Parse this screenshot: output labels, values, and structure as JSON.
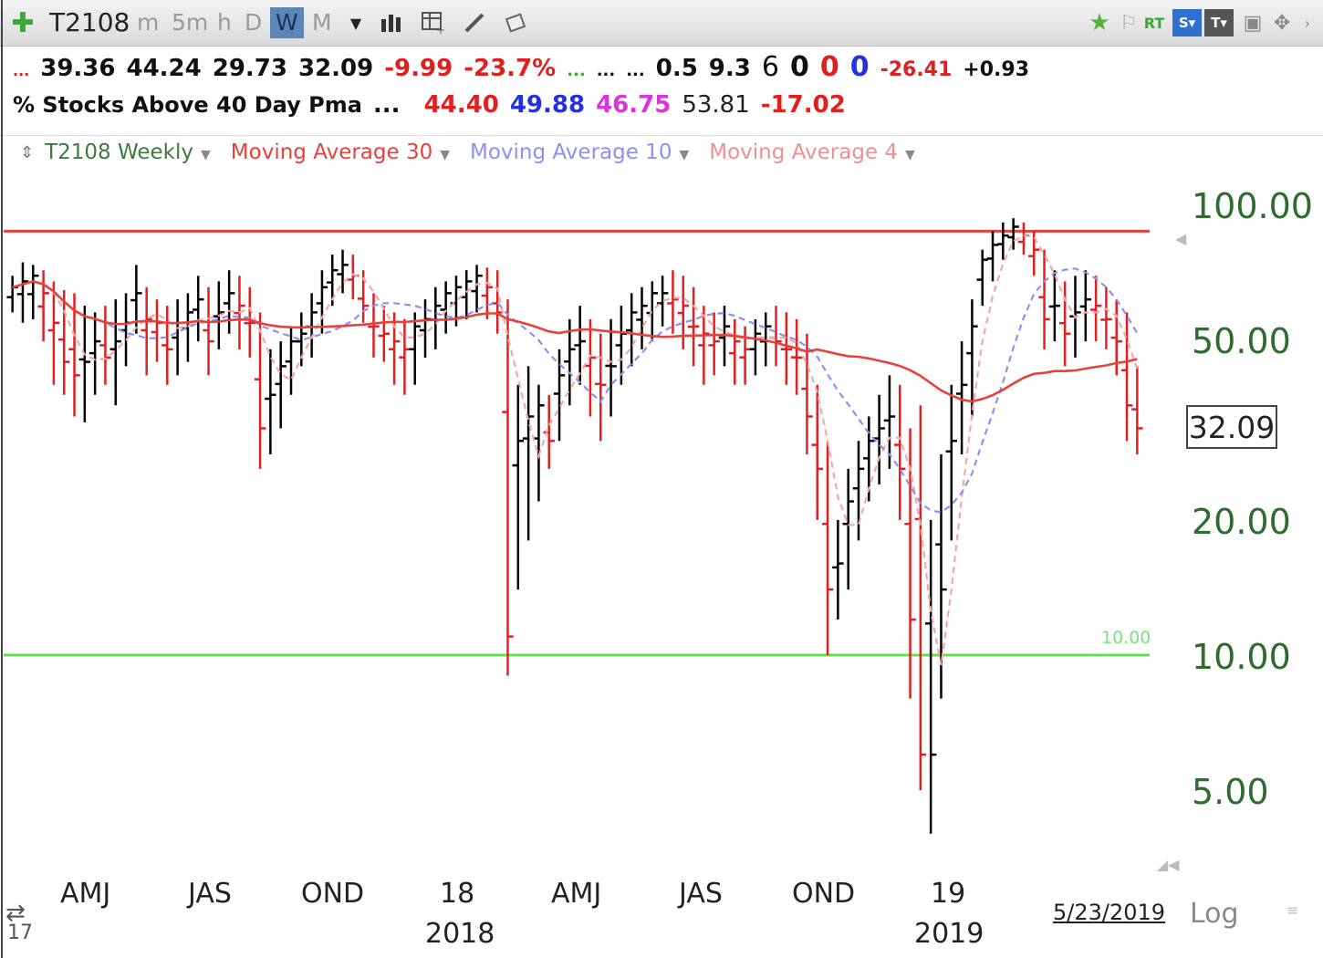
{
  "toolbar": {
    "symbol": "T2108",
    "timeframes": [
      "m",
      "5m",
      "h",
      "D",
      "W",
      "M"
    ],
    "active_timeframe": "W",
    "right_labels": {
      "rt": "RT",
      "s": "S▾",
      "t": "T▾"
    }
  },
  "quote_row": {
    "prefix": "...",
    "open": "39.36",
    "high": "44.24",
    "low": "29.73",
    "close": "32.09",
    "change": "-9.99",
    "change_pct": "-23.7%",
    "dots_green": "...",
    "dots1": "...",
    "dots2": "...",
    "v1": "0.5",
    "v2": "9.3",
    "v3": "6",
    "v4": "0",
    "v5": "0",
    "v6": "0",
    "v7": "-26.41",
    "v8": "+0.93"
  },
  "desc_row": {
    "name": "% Stocks Above 40 Day Pma",
    "dots": "...",
    "ma30": "44.40",
    "ma10": "49.88",
    "ma4": "46.75",
    "prev": "53.81",
    "diff": "-17.02"
  },
  "legend": {
    "series": "T2108 Weekly",
    "ma30": "Moving Average 30",
    "ma10": "Moving Average 10",
    "ma4": "Moving Average 4"
  },
  "colors": {
    "up": "#000000",
    "down": "#e02020",
    "ma30": "#e8403a",
    "ma10": "#8f8ff0",
    "ma4": "#f4a8a8",
    "resistance": "#e8403a",
    "support": "#66dd55",
    "axis_text": "#2e6b2e"
  },
  "chart_data": {
    "type": "ohlc",
    "title": "T2108 Weekly",
    "scale": "log",
    "y_ticks": [
      "100.00",
      "50.00",
      "20.00",
      "10.00",
      "5.00"
    ],
    "y_tick_values": [
      100,
      50,
      20,
      10,
      5
    ],
    "ylim": [
      3.6,
      135
    ],
    "x_ticks": [
      "AMJ",
      "JAS",
      "OND",
      "18",
      "AMJ",
      "JAS",
      "OND",
      "19"
    ],
    "x_years": [
      "2018",
      "2019"
    ],
    "x_left_label": "17",
    "last_price": "32.09",
    "last_date": "5/23/2019",
    "scale_label": "Log",
    "resistance_level": 88,
    "support_level": 10,
    "support_label": "10.00",
    "bars": [
      [
        70,
        58,
        66
      ],
      [
        75,
        55,
        68
      ],
      [
        74,
        56,
        70
      ],
      [
        72,
        50,
        64
      ],
      [
        68,
        40,
        55
      ],
      [
        65,
        38,
        45
      ],
      [
        64,
        34,
        42
      ],
      [
        60,
        33,
        45
      ],
      [
        58,
        38,
        50
      ],
      [
        60,
        40,
        46
      ],
      [
        62,
        36,
        50
      ],
      [
        64,
        44,
        55
      ],
      [
        74,
        52,
        64
      ],
      [
        66,
        42,
        56
      ],
      [
        62,
        45,
        55
      ],
      [
        60,
        40,
        48
      ],
      [
        62,
        42,
        55
      ],
      [
        64,
        45,
        58
      ],
      [
        70,
        50,
        62
      ],
      [
        66,
        42,
        50
      ],
      [
        68,
        48,
        58
      ],
      [
        72,
        52,
        64
      ],
      [
        70,
        48,
        60
      ],
      [
        66,
        46,
        55
      ],
      [
        58,
        26,
        32
      ],
      [
        48,
        28,
        38
      ],
      [
        50,
        32,
        44
      ],
      [
        54,
        38,
        50
      ],
      [
        58,
        44,
        52
      ],
      [
        64,
        46,
        58
      ],
      [
        72,
        52,
        66
      ],
      [
        78,
        60,
        72
      ],
      [
        80,
        64,
        74
      ],
      [
        78,
        62,
        70
      ],
      [
        72,
        55,
        60
      ],
      [
        64,
        46,
        54
      ],
      [
        60,
        45,
        52
      ],
      [
        58,
        40,
        50
      ],
      [
        56,
        38,
        48
      ],
      [
        58,
        40,
        54
      ],
      [
        62,
        46,
        56
      ],
      [
        66,
        48,
        60
      ],
      [
        68,
        52,
        64
      ],
      [
        70,
        54,
        66
      ],
      [
        72,
        56,
        68
      ],
      [
        74,
        58,
        70
      ],
      [
        73,
        56,
        66
      ],
      [
        72,
        52,
        58
      ],
      [
        62,
        9,
        11
      ],
      [
        40,
        14,
        30
      ],
      [
        44,
        18,
        34
      ],
      [
        40,
        22,
        36
      ],
      [
        38,
        26,
        30
      ],
      [
        48,
        30,
        42
      ],
      [
        56,
        36,
        48
      ],
      [
        60,
        40,
        50
      ],
      [
        56,
        34,
        46
      ],
      [
        52,
        30,
        40
      ],
      [
        56,
        34,
        44
      ],
      [
        60,
        40,
        52
      ],
      [
        64,
        44,
        58
      ],
      [
        66,
        48,
        60
      ],
      [
        68,
        50,
        64
      ],
      [
        70,
        54,
        64
      ],
      [
        72,
        52,
        62
      ],
      [
        70,
        48,
        60
      ],
      [
        66,
        44,
        54
      ],
      [
        60,
        40,
        52
      ],
      [
        58,
        42,
        50
      ],
      [
        60,
        44,
        54
      ],
      [
        56,
        40,
        50
      ],
      [
        54,
        40,
        48
      ],
      [
        56,
        42,
        52
      ],
      [
        58,
        44,
        54
      ],
      [
        60,
        44,
        50
      ],
      [
        58,
        40,
        48
      ],
      [
        56,
        38,
        46
      ],
      [
        52,
        28,
        34
      ],
      [
        40,
        20,
        26
      ],
      [
        30,
        10,
        14
      ],
      [
        20,
        12,
        16
      ],
      [
        26,
        14,
        22
      ],
      [
        30,
        18,
        26
      ],
      [
        34,
        22,
        30
      ],
      [
        38,
        24,
        32
      ],
      [
        42,
        26,
        34
      ],
      [
        40,
        20,
        26
      ],
      [
        32,
        8,
        12
      ],
      [
        36,
        5,
        6
      ],
      [
        20,
        4,
        6
      ],
      [
        28,
        8,
        14
      ],
      [
        40,
        18,
        30
      ],
      [
        50,
        28,
        40
      ],
      [
        62,
        34,
        54
      ],
      [
        80,
        60,
        76
      ],
      [
        88,
        68,
        82
      ],
      [
        92,
        76,
        86
      ],
      [
        94,
        80,
        90
      ],
      [
        92,
        78,
        86
      ],
      [
        88,
        70,
        80
      ],
      [
        80,
        48,
        56
      ],
      [
        72,
        50,
        60
      ],
      [
        68,
        44,
        52
      ],
      [
        70,
        46,
        58
      ],
      [
        72,
        50,
        62
      ],
      [
        70,
        50,
        60
      ],
      [
        66,
        48,
        56
      ],
      [
        62,
        42,
        50
      ],
      [
        58,
        30,
        36
      ],
      [
        44,
        28,
        32
      ]
    ]
  }
}
